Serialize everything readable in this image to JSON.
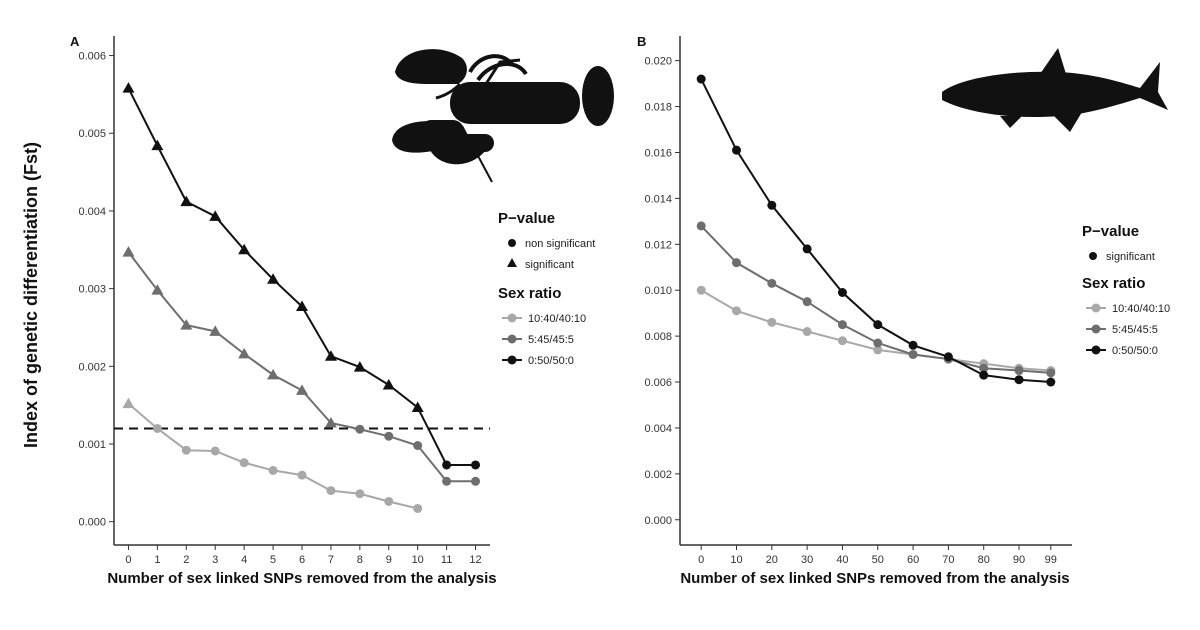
{
  "y_axis_label": "Index of genetic differentiation (Fst)",
  "chart_data": [
    {
      "type": "line",
      "panel_label": "A",
      "xlabel": "Number of sex linked SNPs removed from the analysis",
      "x_ticks": [
        0,
        1,
        2,
        3,
        4,
        5,
        6,
        7,
        8,
        9,
        10,
        11,
        12
      ],
      "y_ticks": [
        "0.000",
        "0.001",
        "0.002",
        "0.003",
        "0.004",
        "0.005",
        "0.006"
      ],
      "xlim": [
        -0.5,
        12.5
      ],
      "ylim": [
        -0.0003,
        0.0062
      ],
      "reference_line": 0.0012,
      "legend": {
        "pvalue_title": "P−value",
        "pvalue_entries": [
          "non significant",
          "significant"
        ],
        "sex_title": "Sex ratio",
        "sex_entries": [
          "10:40/40:10",
          "5:45/45:5",
          "0:50/50:0"
        ]
      },
      "series": [
        {
          "name": "10:40/40:10",
          "color": "#a8a8a8",
          "x": [
            0,
            1,
            2,
            3,
            4,
            5,
            6,
            7,
            8,
            9,
            10
          ],
          "values": [
            0.00152,
            0.0012,
            0.00092,
            0.00091,
            0.00076,
            0.00066,
            0.0006,
            0.0004,
            0.00036,
            0.00026,
            0.00017
          ],
          "markers": [
            "significant",
            "non significant",
            "non significant",
            "non significant",
            "non significant",
            "non significant",
            "non significant",
            "non significant",
            "non significant",
            "non significant",
            "non significant"
          ]
        },
        {
          "name": "5:45/45:5",
          "color": "#6e6e6e",
          "x": [
            0,
            1,
            2,
            3,
            4,
            5,
            6,
            7,
            8,
            9,
            10,
            11,
            12
          ],
          "values": [
            0.00347,
            0.00298,
            0.00253,
            0.00245,
            0.00216,
            0.00189,
            0.00169,
            0.00127,
            0.00119,
            0.0011,
            0.00098,
            0.00052,
            0.00052
          ],
          "markers": [
            "significant",
            "significant",
            "significant",
            "significant",
            "significant",
            "significant",
            "significant",
            "significant",
            "non significant",
            "non significant",
            "non significant",
            "non significant",
            "non significant"
          ]
        },
        {
          "name": "0:50/50:0",
          "color": "#111111",
          "x": [
            0,
            1,
            2,
            3,
            4,
            5,
            6,
            7,
            8,
            9,
            10,
            11,
            12
          ],
          "values": [
            0.00558,
            0.00484,
            0.00412,
            0.00393,
            0.0035,
            0.00312,
            0.00277,
            0.00213,
            0.00199,
            0.00176,
            0.00147,
            0.00073,
            0.00073
          ],
          "markers": [
            "significant",
            "significant",
            "significant",
            "significant",
            "significant",
            "significant",
            "significant",
            "significant",
            "significant",
            "significant",
            "significant",
            "non significant",
            "non significant"
          ]
        }
      ]
    },
    {
      "type": "line",
      "panel_label": "B",
      "xlabel": "Number of sex linked SNPs removed from the analysis",
      "x_ticks": [
        0,
        10,
        20,
        30,
        40,
        50,
        60,
        70,
        80,
        90,
        99
      ],
      "y_ticks": [
        "0.000",
        "0.002",
        "0.004",
        "0.006",
        "0.008",
        "0.010",
        "0.012",
        "0.014",
        "0.016",
        "0.018",
        "0.020"
      ],
      "xlim": [
        -6,
        105
      ],
      "ylim": [
        -0.0011,
        0.0209
      ],
      "legend": {
        "pvalue_title": "P−value",
        "pvalue_entries": [
          "significant"
        ],
        "sex_title": "Sex ratio",
        "sex_entries": [
          "10:40/40:10",
          "5:45/45:5",
          "0:50/50:0"
        ]
      },
      "series": [
        {
          "name": "10:40/40:10",
          "color": "#a8a8a8",
          "x": [
            0,
            10,
            20,
            30,
            40,
            50,
            60,
            70,
            80,
            90,
            99
          ],
          "values": [
            0.01,
            0.0091,
            0.0086,
            0.0082,
            0.0078,
            0.0074,
            0.0072,
            0.007,
            0.0068,
            0.0066,
            0.0065
          ]
        },
        {
          "name": "5:45/45:5",
          "color": "#6e6e6e",
          "x": [
            0,
            10,
            20,
            30,
            40,
            50,
            60,
            70,
            80,
            90,
            99
          ],
          "values": [
            0.0128,
            0.0112,
            0.0103,
            0.0095,
            0.0085,
            0.0077,
            0.0072,
            0.007,
            0.0066,
            0.0065,
            0.0064
          ]
        },
        {
          "name": "0:50/50:0",
          "color": "#111111",
          "x": [
            0,
            10,
            20,
            30,
            40,
            50,
            60,
            70,
            80,
            90,
            99
          ],
          "values": [
            0.0192,
            0.0161,
            0.0137,
            0.0118,
            0.0099,
            0.0085,
            0.0076,
            0.0071,
            0.0063,
            0.0061,
            0.006
          ]
        }
      ]
    }
  ],
  "icons": {
    "panel_a": "lobster-silhouette-icon",
    "panel_b": "fish-silhouette-icon"
  }
}
